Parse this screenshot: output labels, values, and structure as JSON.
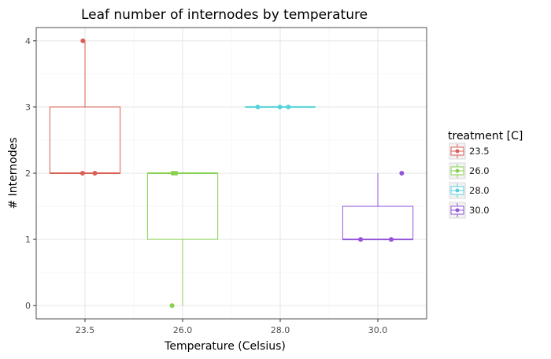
{
  "chart_data": {
    "type": "boxplot",
    "title": "Leaf number of internodes by temperature",
    "xlabel": "Temperature (Celsius)",
    "ylabel": "# Internodes",
    "categories": [
      "23.5",
      "26.0",
      "28.0",
      "30.0"
    ],
    "ylim": [
      -0.2,
      4.2
    ],
    "yticks": [
      0,
      1,
      2,
      3,
      4
    ],
    "grid": true,
    "legend": {
      "title": "treatment [C]",
      "position": "right",
      "entries": [
        "23.5",
        "26.0",
        "28.0",
        "30.0"
      ]
    },
    "series": [
      {
        "name": "23.5",
        "color": "#d95f55",
        "box": {
          "whisker_low": 2,
          "q1": 2,
          "median": 2,
          "q3": 3,
          "whisker_high": 4
        },
        "points": [
          {
            "dx": -0.06,
            "y": 4
          },
          {
            "dx": -0.07,
            "y": 2
          },
          {
            "dx": 0.28,
            "y": 2
          }
        ]
      },
      {
        "name": "26.0",
        "color": "#86d14f",
        "box": {
          "whisker_low": 0,
          "q1": 1,
          "median": 2,
          "q3": 2,
          "whisker_high": 2
        },
        "points": [
          {
            "dx": -0.28,
            "y": 2
          },
          {
            "dx": -0.19,
            "y": 2
          },
          {
            "dx": -0.3,
            "y": 0
          }
        ]
      },
      {
        "name": "28.0",
        "color": "#56d2dc",
        "box": {
          "whisker_low": 3,
          "q1": 3,
          "median": 3,
          "q3": 3,
          "whisker_high": 3
        },
        "points": [
          {
            "dx": -0.64,
            "y": 3
          },
          {
            "dx": -0.01,
            "y": 3
          },
          {
            "dx": 0.23,
            "y": 3
          }
        ]
      },
      {
        "name": "30.0",
        "color": "#9355d9",
        "box": {
          "whisker_low": 1,
          "q1": 1,
          "median": 1,
          "q3": 1.5,
          "whisker_high": 2
        },
        "points": [
          {
            "dx": -0.49,
            "y": 1
          },
          {
            "dx": 0.38,
            "y": 1
          },
          {
            "dx": 0.68,
            "y": 2
          }
        ]
      }
    ]
  }
}
